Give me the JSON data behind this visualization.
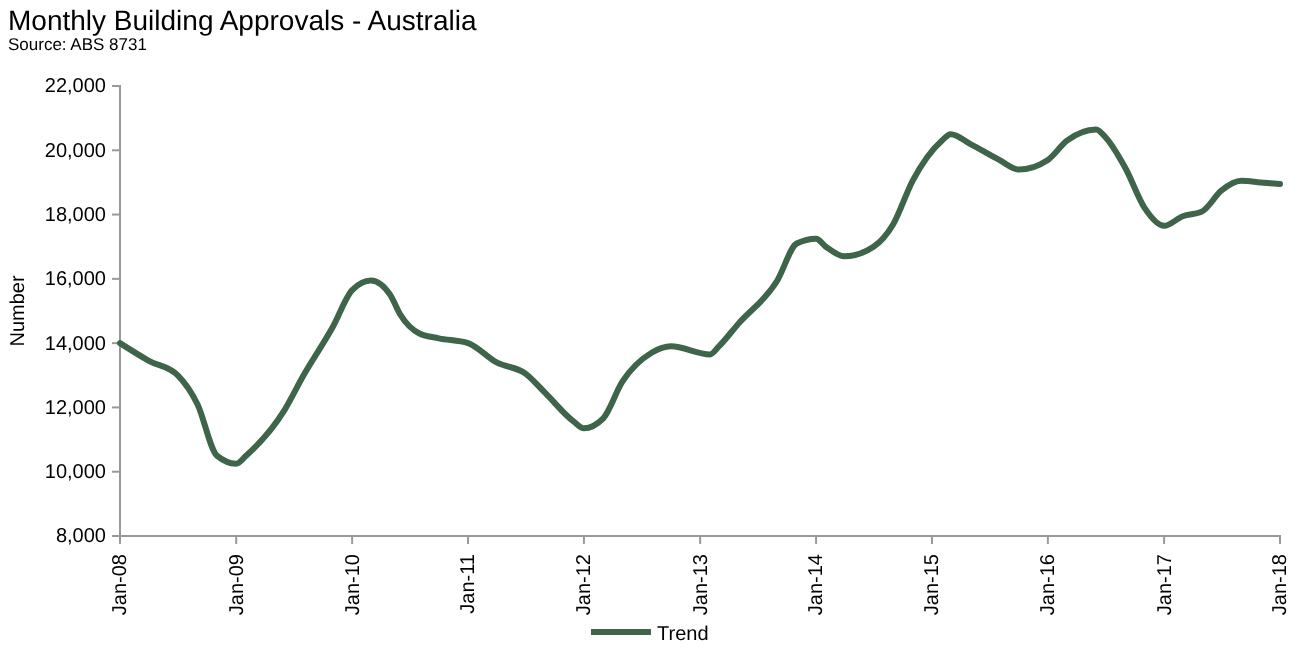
{
  "chart_data": {
    "type": "line",
    "title": "Monthly Building Approvals - Australia",
    "subtitle": "Source: ABS 8731",
    "ylabel": "Number",
    "x": [
      "2008-01",
      "2008-04",
      "2008-07",
      "2008-09",
      "2008-11",
      "2009-01",
      "2009-02",
      "2009-06",
      "2009-08",
      "2009-11",
      "2010-01",
      "2010-03",
      "2010-05",
      "2010-06",
      "2010-08",
      "2010-10",
      "2011-01",
      "2011-04",
      "2011-07",
      "2011-09",
      "2011-12",
      "2012-01",
      "2012-03",
      "2012-05",
      "2012-08",
      "2012-10",
      "2013-02",
      "2013-03",
      "2013-05",
      "2013-09",
      "2013-11",
      "2014-01",
      "2014-02",
      "2014-04",
      "2014-07",
      "2014-09",
      "2014-11",
      "2015-02",
      "2015-03",
      "2015-05",
      "2015-08",
      "2015-10",
      "2016-01",
      "2016-03",
      "2016-06",
      "2016-07",
      "2016-09",
      "2016-11",
      "2017-01",
      "2017-03",
      "2017-05",
      "2017-07",
      "2017-09",
      "2017-11",
      "2018-01"
    ],
    "series": [
      {
        "name": "Trend",
        "color": "#3e644a",
        "values": [
          14000,
          13450,
          13000,
          12100,
          10500,
          10250,
          10500,
          11900,
          13000,
          14500,
          15650,
          15950,
          15500,
          14900,
          14300,
          14150,
          14000,
          13400,
          13050,
          12450,
          11550,
          11350,
          11650,
          12800,
          13700,
          13900,
          13650,
          13900,
          14600,
          15950,
          17100,
          17250,
          17000,
          16700,
          17000,
          17700,
          19050,
          20300,
          20500,
          20200,
          19700,
          19400,
          19700,
          20300,
          20650,
          20400,
          19450,
          18200,
          17650,
          17950,
          18100,
          18750,
          19050,
          19000,
          18950
        ]
      }
    ],
    "xlim": [
      "2008-01",
      "2018-01"
    ],
    "xticks": [
      {
        "value": "2008-01",
        "label": "Jan-08"
      },
      {
        "value": "2009-01",
        "label": "Jan-09"
      },
      {
        "value": "2010-01",
        "label": "Jan-10"
      },
      {
        "value": "2011-01",
        "label": "Jan-11"
      },
      {
        "value": "2012-01",
        "label": "Jan-12"
      },
      {
        "value": "2013-01",
        "label": "Jan-13"
      },
      {
        "value": "2014-01",
        "label": "Jan-14"
      },
      {
        "value": "2015-01",
        "label": "Jan-15"
      },
      {
        "value": "2016-01",
        "label": "Jan-16"
      },
      {
        "value": "2017-01",
        "label": "Jan-17"
      },
      {
        "value": "2018-01",
        "label": "Jan-18"
      }
    ],
    "ylim": [
      8000,
      22000
    ],
    "yticks": [
      {
        "value": 8000,
        "label": "8,000"
      },
      {
        "value": 10000,
        "label": "10,000"
      },
      {
        "value": 12000,
        "label": "12,000"
      },
      {
        "value": 14000,
        "label": "14,000"
      },
      {
        "value": 16000,
        "label": "16,000"
      },
      {
        "value": 18000,
        "label": "18,000"
      },
      {
        "value": 20000,
        "label": "20,000"
      },
      {
        "value": 22000,
        "label": "22,000"
      }
    ],
    "grid": false,
    "legend": "bottom",
    "marker": "none",
    "line_style": "solid"
  }
}
